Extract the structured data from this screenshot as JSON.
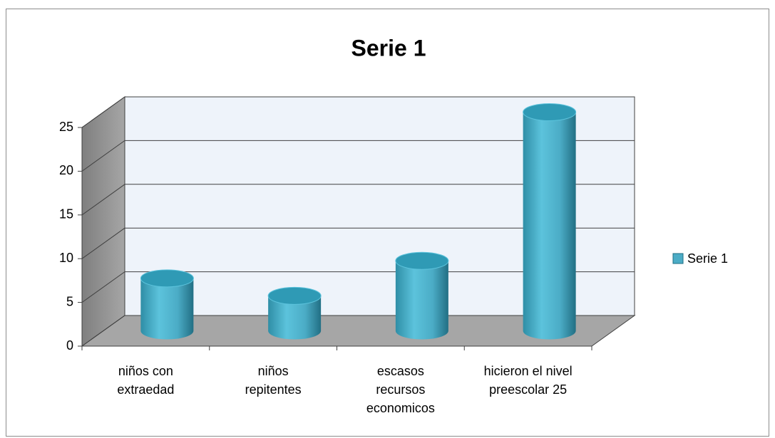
{
  "chart_data": {
    "type": "bar3d",
    "title": "Serie 1",
    "categories": [
      "niños con extraedad",
      "niños repitentes",
      "escasos recursos economicos",
      "hicieron el nivel preescolar 25"
    ],
    "series": [
      {
        "name": "Serie 1",
        "color": "#4bacc6",
        "values": [
          6,
          4,
          8,
          25
        ]
      }
    ],
    "ylim": [
      0,
      25
    ],
    "yticks": [
      0,
      5,
      10,
      15,
      20,
      25
    ],
    "grid": true,
    "legend": "right"
  }
}
